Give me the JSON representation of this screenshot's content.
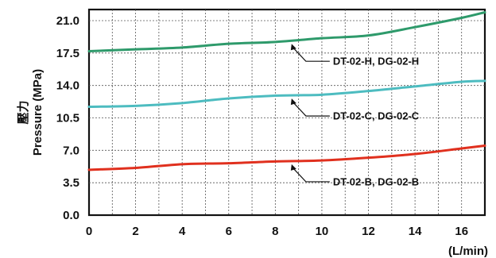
{
  "chart_data": {
    "type": "line",
    "xlabel": "(L/min)",
    "ylabel_line1": "壓力",
    "ylabel_line2": "Pressure (MPa)",
    "xlim": [
      0,
      17
    ],
    "ylim": [
      0,
      22.2
    ],
    "grid": true,
    "x_ticks": [
      0,
      2,
      4,
      6,
      8,
      10,
      12,
      14,
      16
    ],
    "x_tick_labels": [
      "0",
      "2",
      "4",
      "6",
      "8",
      "10",
      "12",
      "14",
      "16"
    ],
    "y_ticks": [
      0,
      3.5,
      7,
      10.5,
      14,
      17.5,
      21
    ],
    "y_tick_labels": [
      "0.0",
      "3.5",
      "7.0",
      "10.5",
      "14.0",
      "17.5",
      "21.0"
    ],
    "series": [
      {
        "name": "DT-02-H, DG-02-H",
        "color": "#2e9a6b",
        "x": [
          0,
          2,
          4,
          6,
          8,
          10,
          12,
          14,
          16,
          17
        ],
        "y": [
          17.7,
          17.9,
          18.1,
          18.5,
          18.7,
          19.1,
          19.4,
          20.3,
          21.3,
          21.9
        ]
      },
      {
        "name": "DT-02-C, DG-02-C",
        "color": "#4dbcc0",
        "x": [
          0,
          2,
          4,
          6,
          8,
          10,
          12,
          14,
          16,
          17
        ],
        "y": [
          11.7,
          11.8,
          12.1,
          12.6,
          12.9,
          13.0,
          13.4,
          13.9,
          14.4,
          14.5
        ]
      },
      {
        "name": "DT-02-B, DG-02-B",
        "color": "#e0301e",
        "x": [
          0,
          2,
          4,
          6,
          8,
          10,
          12,
          14,
          16,
          17
        ],
        "y": [
          4.9,
          5.1,
          5.5,
          5.6,
          5.8,
          5.9,
          6.2,
          6.6,
          7.2,
          7.5
        ]
      }
    ],
    "annotations": [
      {
        "text": "DT-02-H, DG-02-H",
        "series": 0,
        "at_x": 8.7
      },
      {
        "text": "DT-02-C, DG-02-C",
        "series": 1,
        "at_x": 8.7
      },
      {
        "text": "DT-02-B, DG-02-B",
        "series": 2,
        "at_x": 8.7
      }
    ]
  }
}
